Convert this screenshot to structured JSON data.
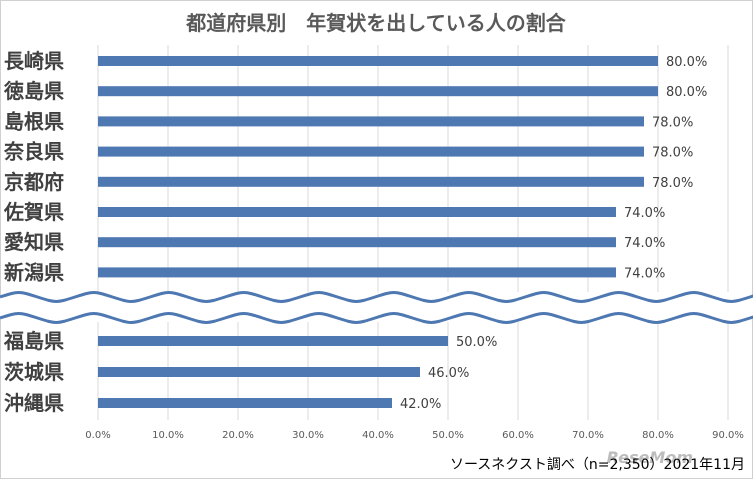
{
  "chart_data": {
    "type": "bar",
    "orientation": "horizontal",
    "title": "都道府県別　年賀状を出している人の割合",
    "groups": [
      {
        "categories": [
          "長崎県",
          "徳島県",
          "島根県",
          "奈良県",
          "京都府",
          "佐賀県",
          "愛知県",
          "新潟県"
        ],
        "values": [
          80.0,
          80.0,
          78.0,
          78.0,
          78.0,
          74.0,
          74.0,
          74.0
        ],
        "value_labels": [
          "80.0%",
          "80.0%",
          "78.0%",
          "78.0%",
          "78.0%",
          "74.0%",
          "74.0%",
          "74.0%"
        ]
      },
      {
        "categories": [
          "福島県",
          "茨城県",
          "沖縄県"
        ],
        "values": [
          50.0,
          46.0,
          42.0
        ],
        "value_labels": [
          "50.0%",
          "46.0%",
          "42.0%"
        ]
      }
    ],
    "xlim": [
      0,
      90
    ],
    "x_ticks": [
      0,
      10,
      20,
      30,
      40,
      50,
      60,
      70,
      80,
      90
    ],
    "x_tick_labels": [
      "0.0%",
      "10.0%",
      "20.0%",
      "30.0%",
      "40.0%",
      "50.0%",
      "60.0%",
      "70.0%",
      "80.0%",
      "90.0%"
    ],
    "grid": true,
    "axis_break": true,
    "bar_color": "#4e78b2",
    "break_color": "#4e78b2"
  },
  "source": "ソースネクスト調べ（n=2,350）2021年11月",
  "watermark": "ReseMom"
}
